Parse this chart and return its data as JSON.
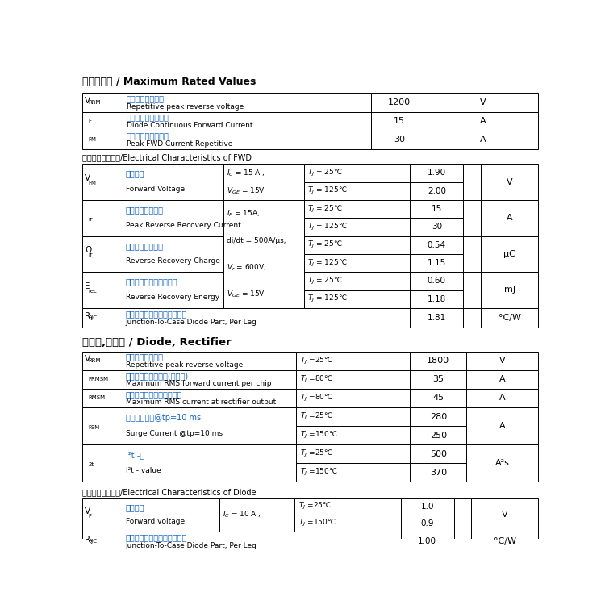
{
  "bg_color": "#ffffff",
  "border_color": "#000000",
  "text_color": "#000000",
  "blue_color": "#1565C0",
  "s1_title": "最大额定值 / Maximum Rated Values",
  "s2_title": "二极管的电气特性/Electrical Characteristics of FWD",
  "s3_title": "二极管,整流器 / Diode, Rectifier",
  "s4_title": "二极管的电气特性/Electrical Characteristics of Diode",
  "t1_rows": [
    [
      "V",
      "RRM",
      "反向重复峰値电压",
      "Repetitive peak reverse voltage",
      "1200",
      "V"
    ],
    [
      "I",
      "F",
      "二极管正向直流电流",
      "Diode Continuous Forward Current",
      "15",
      "A"
    ],
    [
      "I",
      "FM",
      "二极管正向脉冲电流",
      "Peak FWD Current Repetitive",
      "30",
      "A"
    ]
  ],
  "t2_rows": [
    {
      "sym": "V",
      "sub": "FM",
      "cn": "正向压降",
      "en": "Forward Voltage",
      "cond": [
        "$I_C$ = 15 A ,",
        "$V_{GE}$ = 15V"
      ],
      "cond_shared": false,
      "temps": [
        "$T_J$ = 25℃",
        "$T_J$ = 125℃"
      ],
      "vals": [
        "1.90",
        "2.00"
      ],
      "unit": "V"
    },
    {
      "sym": "I",
      "sub": "rr",
      "cn": "反向恢复峰値电流",
      "en": "Peak Reverse Recovery Current",
      "cond": [],
      "cond_shared": true,
      "temps": [
        "$T_J$ = 25℃",
        "$T_J$ = 125℃"
      ],
      "vals": [
        "15",
        "30"
      ],
      "unit": "A"
    },
    {
      "sym": "Q",
      "sub": "rr",
      "cn": "反向恢复充电电量",
      "en": "Reverse Recovery Charge",
      "cond": [],
      "cond_shared": true,
      "temps": [
        "$T_J$ = 25℃",
        "$T_J$ = 125℃"
      ],
      "vals": [
        "0.54",
        "1.15"
      ],
      "unit": "μC"
    },
    {
      "sym": "E",
      "sub": "rec",
      "cn": "反向恢复损耗（每脉冲）",
      "en": "Reverse Recovery Energy",
      "cond": [],
      "cond_shared": true,
      "temps": [
        "$T_J$ = 25℃",
        "$T_J$ = 125℃"
      ],
      "vals": [
        "0.60",
        "1.18"
      ],
      "unit": "mJ"
    }
  ],
  "t2_shared_cond": [
    "$I_F$ = 15A,",
    "di/dt = 500A/μs,",
    "$V_r$ = 600V,",
    "$V_{GE}$ = 15V"
  ],
  "t2_rjc": {
    "sym": "R",
    "sub": "θJC",
    "cn": "桥臂二极管芯片与外壳间热阻",
    "en": "Junction-To-Case Diode Part, Per Leg",
    "val": "1.81",
    "unit": "°C/W"
  },
  "t3_rows": [
    [
      "V",
      "RRM",
      "反向重复峰値电压",
      "Repetitive peak reverse voltage",
      "$T_J$ =25℃",
      "1800",
      "V",
      1
    ],
    [
      "I",
      "FRMSM",
      "最大正向均方根电流(每芯片)",
      "Maximum RMS forward current per chip",
      "$T_J$ =80℃",
      "35",
      "A",
      1
    ],
    [
      "I",
      "RMSM",
      "最大整流器输出均方根电流",
      "Maximum RMS current at rectifier output",
      "$T_J$ =80℃",
      "45",
      "A",
      1
    ],
    [
      "I",
      "FSM",
      "正向浪涌电流@tp=10 ms",
      "Surge Current @tp=10 ms",
      "$T_J$ =25℃",
      "280",
      "A",
      2,
      "$T_J$ =150℃",
      "250"
    ],
    [
      "I",
      "2t",
      "I²t -値",
      "I²t - value",
      "$T_J$ =25℃",
      "500",
      "A²s",
      2,
      "$T_J$ =150℃",
      "370"
    ]
  ],
  "t4_rows": [
    {
      "sym": "V",
      "sub": "F",
      "cn": "正向电压",
      "en": "Forward voltage",
      "cond": "$I_C$ = 10 A ,",
      "temps": [
        "$T_J$ =25℃",
        "$T_J$ =150℃"
      ],
      "vals": [
        "1.0",
        "0.9"
      ],
      "unit": "V"
    }
  ],
  "t4_rjc": {
    "sym": "R",
    "sub": "θJC",
    "cn": "桥臂二极管芯片与外壳间热阻",
    "en": "Junction-To-Case Diode Part, Per Leg",
    "val": "1.00",
    "unit": "°C/W"
  }
}
